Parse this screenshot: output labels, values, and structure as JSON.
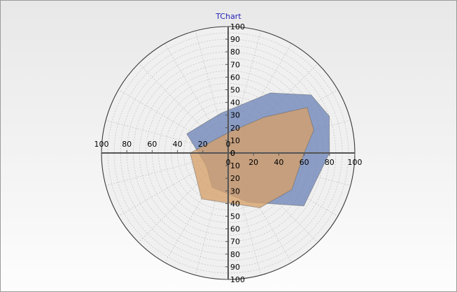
{
  "chart_data": {
    "type": "radar",
    "title": "TChart",
    "radial_range": [
      0,
      100
    ],
    "radial_tick_labels": [
      "0",
      "10",
      "20",
      "30",
      "40",
      "50",
      "60",
      "70",
      "80",
      "90",
      "100"
    ],
    "horizontal_tick_labels": [
      "0",
      "20",
      "40",
      "60",
      "80",
      "100"
    ],
    "angular_step_degrees": 15,
    "grid": true,
    "series": [
      {
        "color": "#6e85b8",
        "points": [
          {
            "angle": 0,
            "r": 80
          },
          {
            "angle": 20,
            "r": 85
          },
          {
            "angle": 35,
            "r": 80
          },
          {
            "angle": 55,
            "r": 58
          },
          {
            "angle": 100,
            "r": 32
          },
          {
            "angle": 155,
            "r": 36
          },
          {
            "angle": 210,
            "r": 20
          },
          {
            "angle": 245,
            "r": 30
          },
          {
            "angle": 292,
            "r": 42
          },
          {
            "angle": 325,
            "r": 73
          }
        ]
      },
      {
        "color": "#d6a06a",
        "points": [
          {
            "angle": 0,
            "r": 60
          },
          {
            "angle": 15,
            "r": 70
          },
          {
            "angle": 30,
            "r": 72
          },
          {
            "angle": 45,
            "r": 40
          },
          {
            "angle": 90,
            "r": 16
          },
          {
            "angle": 180,
            "r": 30
          },
          {
            "angle": 240,
            "r": 42
          },
          {
            "angle": 300,
            "r": 50
          },
          {
            "angle": 330,
            "r": 58
          }
        ]
      }
    ]
  }
}
